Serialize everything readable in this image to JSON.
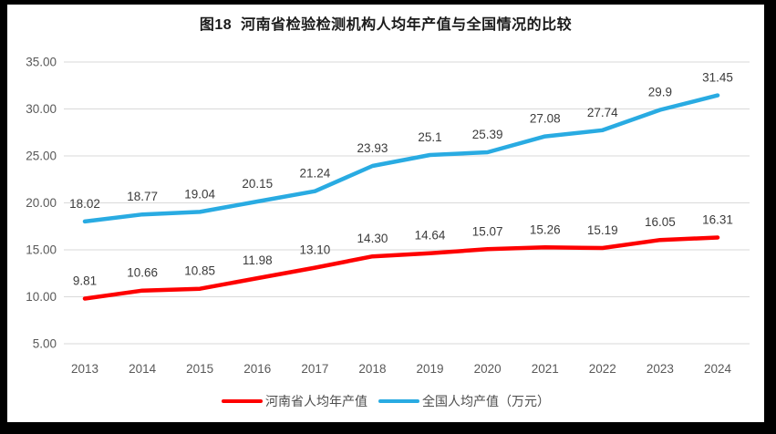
{
  "title": "图18  河南省检验检测机构人均年产值与全国情况的比较",
  "chart_data": {
    "type": "line",
    "categories": [
      "2013",
      "2014",
      "2015",
      "2016",
      "2017",
      "2018",
      "2019",
      "2020",
      "2021",
      "2022",
      "2023",
      "2024"
    ],
    "series": [
      {
        "id": "henan",
        "name": "河南省人均年产值",
        "color": "#fe0000",
        "values": [
          9.81,
          10.66,
          10.85,
          11.98,
          13.1,
          14.3,
          14.64,
          15.07,
          15.26,
          15.19,
          16.05,
          16.31
        ],
        "labels": [
          "9.81",
          "10.66",
          "10.85",
          "11.98",
          "13.10",
          "14.30",
          "14.64",
          "15.07",
          "15.26",
          "15.19",
          "16.05",
          "16.31"
        ]
      },
      {
        "id": "national",
        "name": "全国人均产值（万元）",
        "color": "#29abe2",
        "values": [
          18.02,
          18.77,
          19.04,
          20.15,
          21.24,
          23.93,
          25.1,
          25.39,
          27.08,
          27.74,
          29.9,
          31.45
        ],
        "labels": [
          "18.02",
          "18.77",
          "19.04",
          "20.15",
          "21.24",
          "23.93",
          "25.1",
          "25.39",
          "27.08",
          "27.74",
          "29.9",
          "31.45"
        ]
      }
    ],
    "ylim": [
      5,
      35
    ],
    "ytick_step": 5,
    "ytick_decimals": 2,
    "xlabel": "",
    "ylabel": "",
    "grid": "horizontal",
    "legend_position": "bottom",
    "marker": "none"
  },
  "colors": {
    "grid": "#d9d9d9",
    "axis_text": "#595959",
    "data_label_text": "#3b3b3b",
    "frame": "#000000",
    "background": "#ffffff"
  }
}
